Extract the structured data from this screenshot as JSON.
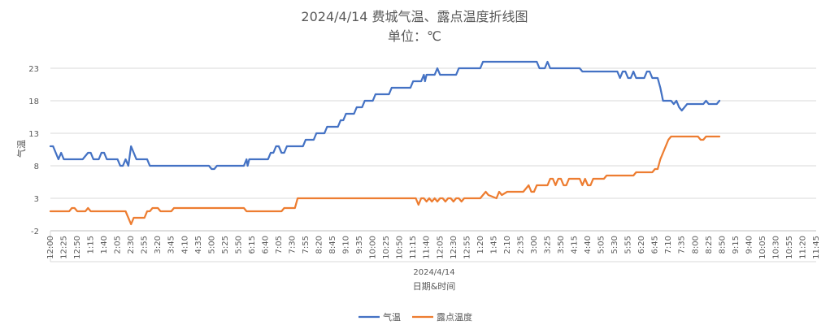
{
  "chart_data": {
    "type": "line",
    "title": "2024/4/14 费城气温、露点温度折线图",
    "subtitle": "单位：℃",
    "xlabel": "日期&时间",
    "ylabel": "气温",
    "date_label": "2024/4/14",
    "ylim": [
      -2,
      23
    ],
    "yticks": [
      -2,
      3,
      8,
      13,
      18,
      23
    ],
    "grid": true,
    "legend_position": "bottom",
    "x_tick_labels": [
      "12:00",
      "12:25",
      "12:50",
      "1:15",
      "1:40",
      "2:05",
      "2:30",
      "2:55",
      "3:20",
      "3:45",
      "4:10",
      "4:35",
      "5:00",
      "5:25",
      "5:50",
      "6:15",
      "6:40",
      "7:05",
      "7:30",
      "7:55",
      "8:20",
      "8:45",
      "9:10",
      "9:35",
      "10:00",
      "10:25",
      "10:50",
      "11:15",
      "11:40",
      "12:05",
      "12:30",
      "12:55",
      "1:20",
      "1:45",
      "2:10",
      "2:35",
      "3:00",
      "3:25",
      "3:50",
      "4:15",
      "4:40",
      "5:05",
      "5:30",
      "5:55",
      "6:20",
      "6:45",
      "7:10",
      "7:35",
      "8:00",
      "8:25",
      "8:50",
      "9:15",
      "9:40",
      "10:05",
      "10:30",
      "10:55",
      "11:20",
      "11:45"
    ],
    "x_tick_step_minutes": 25,
    "series": [
      {
        "name": "气温",
        "color": "#4472C4",
        "points": [
          [
            0,
            11
          ],
          [
            5,
            11
          ],
          [
            15,
            9
          ],
          [
            20,
            10
          ],
          [
            25,
            9
          ],
          [
            60,
            9
          ],
          [
            70,
            10
          ],
          [
            75,
            10
          ],
          [
            80,
            9
          ],
          [
            90,
            9
          ],
          [
            95,
            10
          ],
          [
            100,
            10
          ],
          [
            105,
            9
          ],
          [
            125,
            9
          ],
          [
            130,
            8
          ],
          [
            135,
            8
          ],
          [
            140,
            9
          ],
          [
            145,
            8
          ],
          [
            150,
            11
          ],
          [
            155,
            10
          ],
          [
            160,
            9
          ],
          [
            180,
            9
          ],
          [
            185,
            8
          ],
          [
            295,
            8
          ],
          [
            300,
            7.5
          ],
          [
            305,
            7.5
          ],
          [
            310,
            8
          ],
          [
            360,
            8
          ],
          [
            365,
            9
          ],
          [
            367,
            8
          ],
          [
            370,
            9
          ],
          [
            405,
            9
          ],
          [
            410,
            10
          ],
          [
            415,
            10
          ],
          [
            420,
            11
          ],
          [
            425,
            11
          ],
          [
            430,
            10
          ],
          [
            435,
            10
          ],
          [
            440,
            11
          ],
          [
            470,
            11
          ],
          [
            475,
            12
          ],
          [
            490,
            12
          ],
          [
            495,
            13
          ],
          [
            510,
            13
          ],
          [
            515,
            14
          ],
          [
            535,
            14
          ],
          [
            540,
            15
          ],
          [
            545,
            15
          ],
          [
            550,
            16
          ],
          [
            565,
            16
          ],
          [
            570,
            17
          ],
          [
            580,
            17
          ],
          [
            585,
            18
          ],
          [
            600,
            18
          ],
          [
            605,
            19
          ],
          [
            630,
            19
          ],
          [
            635,
            20
          ],
          [
            670,
            20
          ],
          [
            675,
            21
          ],
          [
            690,
            21
          ],
          [
            695,
            22
          ],
          [
            697,
            21
          ],
          [
            700,
            22
          ],
          [
            710,
            22
          ],
          [
            715,
            22
          ],
          [
            720,
            23
          ],
          [
            725,
            22
          ],
          [
            755,
            22
          ],
          [
            760,
            23
          ],
          [
            800,
            23
          ],
          [
            805,
            24
          ],
          [
            905,
            24
          ],
          [
            910,
            23
          ],
          [
            920,
            23
          ],
          [
            925,
            24
          ],
          [
            930,
            23
          ],
          [
            985,
            23
          ],
          [
            990,
            22.5
          ],
          [
            1055,
            22.5
          ],
          [
            1060,
            21.5
          ],
          [
            1065,
            22.5
          ],
          [
            1070,
            22.5
          ],
          [
            1075,
            21.5
          ],
          [
            1080,
            21.5
          ],
          [
            1085,
            22.5
          ],
          [
            1090,
            21.5
          ],
          [
            1105,
            21.5
          ],
          [
            1110,
            22.5
          ],
          [
            1115,
            22.5
          ],
          [
            1120,
            21.5
          ],
          [
            1130,
            21.5
          ],
          [
            1135,
            20
          ],
          [
            1140,
            18
          ],
          [
            1155,
            18
          ],
          [
            1160,
            17.5
          ],
          [
            1165,
            18
          ],
          [
            1170,
            17
          ],
          [
            1175,
            16.5
          ],
          [
            1180,
            17
          ],
          [
            1185,
            17.5
          ],
          [
            1215,
            17.5
          ],
          [
            1220,
            18
          ],
          [
            1225,
            17.5
          ],
          [
            1240,
            17.5
          ],
          [
            1245,
            18
          ]
        ]
      },
      {
        "name": "露点温度",
        "color": "#ED7D31",
        "points": [
          [
            0,
            1
          ],
          [
            35,
            1
          ],
          [
            40,
            1.5
          ],
          [
            45,
            1.5
          ],
          [
            50,
            1
          ],
          [
            65,
            1
          ],
          [
            70,
            1.5
          ],
          [
            75,
            1
          ],
          [
            115,
            1
          ],
          [
            120,
            1
          ],
          [
            125,
            1
          ],
          [
            135,
            1
          ],
          [
            140,
            1
          ],
          [
            145,
            0
          ],
          [
            150,
            -1
          ],
          [
            155,
            0
          ],
          [
            175,
            0
          ],
          [
            180,
            1
          ],
          [
            185,
            1
          ],
          [
            190,
            1.5
          ],
          [
            200,
            1.5
          ],
          [
            205,
            1
          ],
          [
            225,
            1
          ],
          [
            230,
            1.5
          ],
          [
            300,
            1.5
          ],
          [
            310,
            1.5
          ],
          [
            360,
            1.5
          ],
          [
            365,
            1
          ],
          [
            430,
            1
          ],
          [
            435,
            1.5
          ],
          [
            455,
            1.5
          ],
          [
            460,
            3
          ],
          [
            680,
            3
          ],
          [
            685,
            2
          ],
          [
            690,
            3
          ],
          [
            695,
            3
          ],
          [
            700,
            2.5
          ],
          [
            705,
            3
          ],
          [
            710,
            2.5
          ],
          [
            715,
            3
          ],
          [
            720,
            2.5
          ],
          [
            725,
            3
          ],
          [
            730,
            3
          ],
          [
            735,
            2.5
          ],
          [
            740,
            3
          ],
          [
            745,
            3
          ],
          [
            750,
            2.5
          ],
          [
            755,
            3
          ],
          [
            760,
            3
          ],
          [
            765,
            2.5
          ],
          [
            770,
            3
          ],
          [
            800,
            3
          ],
          [
            805,
            3.5
          ],
          [
            810,
            4
          ],
          [
            815,
            3.5
          ],
          [
            830,
            3
          ],
          [
            835,
            4
          ],
          [
            840,
            3.5
          ],
          [
            850,
            4
          ],
          [
            880,
            4
          ],
          [
            885,
            4.5
          ],
          [
            890,
            5
          ],
          [
            895,
            4
          ],
          [
            900,
            4
          ],
          [
            905,
            5
          ],
          [
            925,
            5
          ],
          [
            930,
            6
          ],
          [
            935,
            6
          ],
          [
            940,
            5
          ],
          [
            945,
            6
          ],
          [
            950,
            6
          ],
          [
            955,
            5
          ],
          [
            960,
            5
          ],
          [
            965,
            6
          ],
          [
            985,
            6
          ],
          [
            990,
            5
          ],
          [
            995,
            6
          ],
          [
            1000,
            5
          ],
          [
            1005,
            5
          ],
          [
            1010,
            6
          ],
          [
            1030,
            6
          ],
          [
            1035,
            6.5
          ],
          [
            1085,
            6.5
          ],
          [
            1090,
            7
          ],
          [
            1120,
            7
          ],
          [
            1125,
            7.5
          ],
          [
            1130,
            7.5
          ],
          [
            1135,
            9
          ],
          [
            1140,
            10
          ],
          [
            1145,
            11
          ],
          [
            1150,
            12
          ],
          [
            1155,
            12.5
          ],
          [
            1205,
            12.5
          ],
          [
            1210,
            12
          ],
          [
            1215,
            12
          ],
          [
            1220,
            12.5
          ],
          [
            1245,
            12.5
          ]
        ]
      }
    ]
  }
}
